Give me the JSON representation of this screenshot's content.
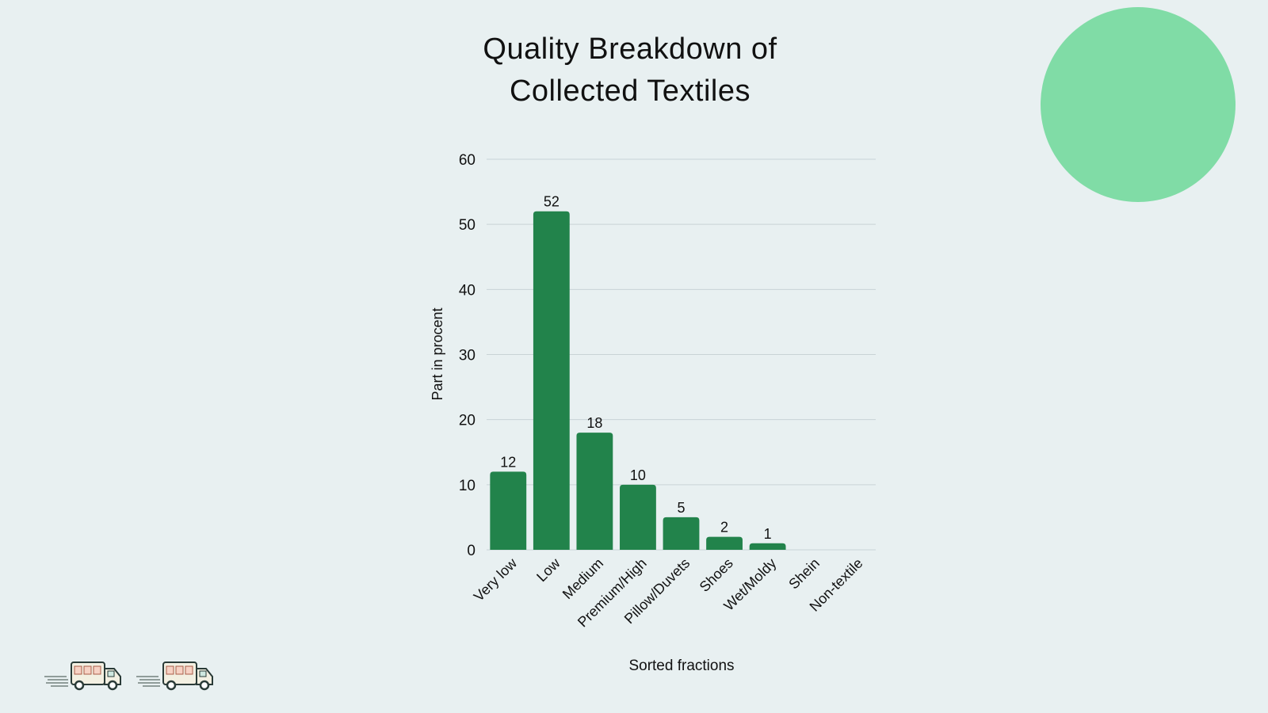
{
  "page": {
    "title_lines": [
      "Quality Breakdown of",
      "Collected Textiles"
    ]
  },
  "colors": {
    "background": "#e8f0f1",
    "bar": "#22834b",
    "decor_circle": "#80dca6",
    "grid": "#c9d3d6",
    "text": "#111111"
  },
  "decor": {
    "circle_icon": "green-circle-decoration",
    "truck_icon": "delivery-truck-icon",
    "truck_count": 2
  },
  "chart_data": {
    "type": "bar",
    "categories": [
      "Very low",
      "Low",
      "Medium",
      "Premium/High",
      "Pillow/Duvets",
      "Shoes",
      "Wet/Moldy",
      "Shein",
      "Non-textile"
    ],
    "values": [
      12,
      52,
      18,
      10,
      5,
      2,
      1,
      0,
      0
    ],
    "data_labels": [
      "12",
      "52",
      "18",
      "10",
      "5",
      "2",
      "1",
      "",
      ""
    ],
    "xlabel": "Sorted fractions",
    "ylabel": "Part in procent",
    "ylim": [
      0,
      60
    ],
    "yticks": [
      0,
      10,
      20,
      30,
      40,
      50,
      60
    ],
    "grid": true,
    "legend": "none"
  }
}
